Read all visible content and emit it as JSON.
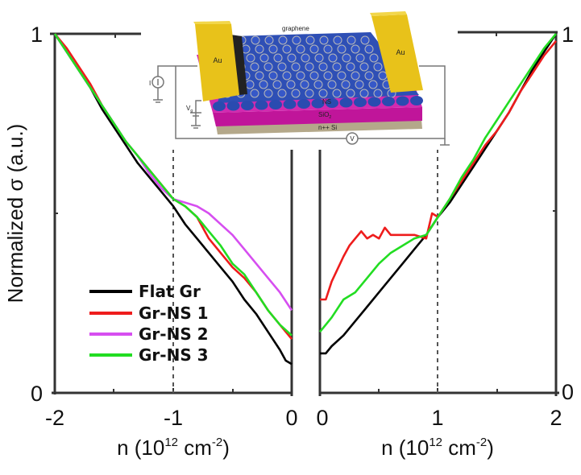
{
  "chart_data": {
    "type": "line",
    "ylabel": "Normalized σ (a.u.)",
    "grid": false,
    "legend_placement": "lower-left",
    "colors": {
      "Flat Gr": "#000000",
      "Gr-NS 1": "#ee1c1c",
      "Gr-NS 2": "#d64ef0",
      "Gr-NS 3": "#22dd22"
    },
    "panels": [
      {
        "name": "hole-side",
        "xlabel_main": "n (10",
        "xlabel_exp": "12",
        "xlabel_unit": " cm",
        "xlabel_unit_exp": "-2",
        "xlabel_close": ")",
        "xlim": [
          -2,
          0
        ],
        "ylim": [
          0,
          1
        ],
        "xticks": [
          "-2",
          "-1",
          "0"
        ],
        "yticks": [
          "0",
          "1"
        ],
        "ytick_side": "left",
        "dashed_line_x": -1,
        "series": [
          {
            "name": "Flat Gr",
            "x": [
              -2,
              -1.9,
              -1.8,
              -1.7,
              -1.6,
              -1.5,
              -1.4,
              -1.3,
              -1.2,
              -1.1,
              -1.0,
              -0.9,
              -0.8,
              -0.7,
              -0.6,
              -0.5,
              -0.4,
              -0.3,
              -0.2,
              -0.1,
              -0.05,
              0
            ],
            "y": [
              1.0,
              0.95,
              0.9,
              0.85,
              0.79,
              0.74,
              0.69,
              0.64,
              0.6,
              0.56,
              0.52,
              0.47,
              0.43,
              0.39,
              0.35,
              0.31,
              0.26,
              0.22,
              0.17,
              0.12,
              0.09,
              0.08
            ]
          },
          {
            "name": "Gr-NS 1",
            "x": [
              -2,
              -1.9,
              -1.8,
              -1.7,
              -1.6,
              -1.5,
              -1.4,
              -1.3,
              -1.2,
              -1.1,
              -1.0,
              -0.9,
              -0.8,
              -0.7,
              -0.6,
              -0.5,
              -0.4,
              -0.3,
              -0.2,
              -0.1,
              0
            ],
            "y": [
              1.0,
              0.96,
              0.91,
              0.86,
              0.8,
              0.75,
              0.7,
              0.66,
              0.62,
              0.58,
              0.54,
              0.52,
              0.49,
              0.43,
              0.39,
              0.35,
              0.32,
              0.28,
              0.23,
              0.19,
              0.15
            ]
          },
          {
            "name": "Gr-NS 2",
            "x": [
              -2,
              -1.9,
              -1.8,
              -1.7,
              -1.6,
              -1.5,
              -1.4,
              -1.3,
              -1.2,
              -1.1,
              -1.0,
              -0.9,
              -0.8,
              -0.7,
              -0.6,
              -0.5,
              -0.4,
              -0.3,
              -0.2,
              -0.1,
              0
            ],
            "y": [
              1.0,
              0.95,
              0.9,
              0.85,
              0.8,
              0.75,
              0.7,
              0.66,
              0.61,
              0.57,
              0.54,
              0.53,
              0.52,
              0.5,
              0.47,
              0.44,
              0.4,
              0.36,
              0.32,
              0.28,
              0.23
            ]
          },
          {
            "name": "Gr-NS 3",
            "x": [
              -2,
              -1.9,
              -1.8,
              -1.7,
              -1.6,
              -1.5,
              -1.4,
              -1.3,
              -1.2,
              -1.1,
              -1.0,
              -0.9,
              -0.8,
              -0.7,
              -0.6,
              -0.5,
              -0.4,
              -0.3,
              -0.2,
              -0.1,
              0
            ],
            "y": [
              1.0,
              0.95,
              0.9,
              0.85,
              0.8,
              0.75,
              0.7,
              0.66,
              0.62,
              0.58,
              0.54,
              0.52,
              0.49,
              0.45,
              0.41,
              0.36,
              0.33,
              0.28,
              0.23,
              0.19,
              0.16
            ]
          }
        ]
      },
      {
        "name": "electron-side",
        "xlabel_main": "n (10",
        "xlabel_exp": "12",
        "xlabel_unit": " cm",
        "xlabel_unit_exp": "-2",
        "xlabel_close": ")",
        "xlim": [
          0,
          2
        ],
        "ylim": [
          0,
          1
        ],
        "xticks": [
          "0",
          "1",
          "2"
        ],
        "yticks": [
          "0",
          "1"
        ],
        "ytick_side": "right",
        "dashed_line_x": 1,
        "series": [
          {
            "name": "Flat Gr",
            "x": [
              0,
              0.05,
              0.1,
              0.2,
              0.3,
              0.4,
              0.5,
              0.6,
              0.7,
              0.8,
              0.9,
              1.0,
              1.1,
              1.2,
              1.3,
              1.4,
              1.5,
              1.6,
              1.7,
              1.8,
              1.9,
              2.0
            ],
            "y": [
              0.11,
              0.11,
              0.13,
              0.16,
              0.2,
              0.24,
              0.28,
              0.32,
              0.36,
              0.4,
              0.44,
              0.49,
              0.53,
              0.58,
              0.63,
              0.68,
              0.73,
              0.78,
              0.84,
              0.9,
              0.95,
              1.0
            ]
          },
          {
            "name": "Gr-NS 1",
            "x": [
              0,
              0.05,
              0.1,
              0.2,
              0.25,
              0.3,
              0.35,
              0.4,
              0.45,
              0.5,
              0.55,
              0.6,
              0.7,
              0.8,
              0.9,
              0.95,
              1.0,
              1.1,
              1.2,
              1.3,
              1.4,
              1.5,
              1.6,
              1.7,
              1.8,
              1.9,
              2.0
            ],
            "y": [
              0.26,
              0.26,
              0.31,
              0.38,
              0.41,
              0.43,
              0.45,
              0.43,
              0.44,
              0.43,
              0.46,
              0.44,
              0.44,
              0.44,
              0.43,
              0.5,
              0.49,
              0.54,
              0.59,
              0.64,
              0.69,
              0.73,
              0.78,
              0.84,
              0.89,
              0.94,
              0.98
            ]
          },
          {
            "name": "Gr-NS 3",
            "x": [
              0,
              0.05,
              0.1,
              0.2,
              0.3,
              0.4,
              0.5,
              0.6,
              0.7,
              0.8,
              0.9,
              1.0,
              1.1,
              1.2,
              1.3,
              1.4,
              1.5,
              1.6,
              1.7,
              1.8,
              1.9,
              2.0
            ],
            "y": [
              0.17,
              0.19,
              0.21,
              0.26,
              0.28,
              0.32,
              0.36,
              0.39,
              0.41,
              0.43,
              0.44,
              0.49,
              0.54,
              0.6,
              0.65,
              0.71,
              0.76,
              0.81,
              0.86,
              0.91,
              0.96,
              1.0
            ]
          }
        ]
      }
    ],
    "legend": [
      "Flat Gr",
      "Gr-NS 1",
      "Gr-NS 2",
      "Gr-NS 3"
    ]
  },
  "inset": {
    "title": "graphene",
    "labels": {
      "au_left": "Au",
      "au_right": "Au",
      "ns": "NS",
      "sio2": "SiO",
      "sio2_sub": "2",
      "si": "n++ Si",
      "current": "I",
      "gate": "V",
      "gate_sub": "g",
      "voltmeter": "V"
    }
  }
}
